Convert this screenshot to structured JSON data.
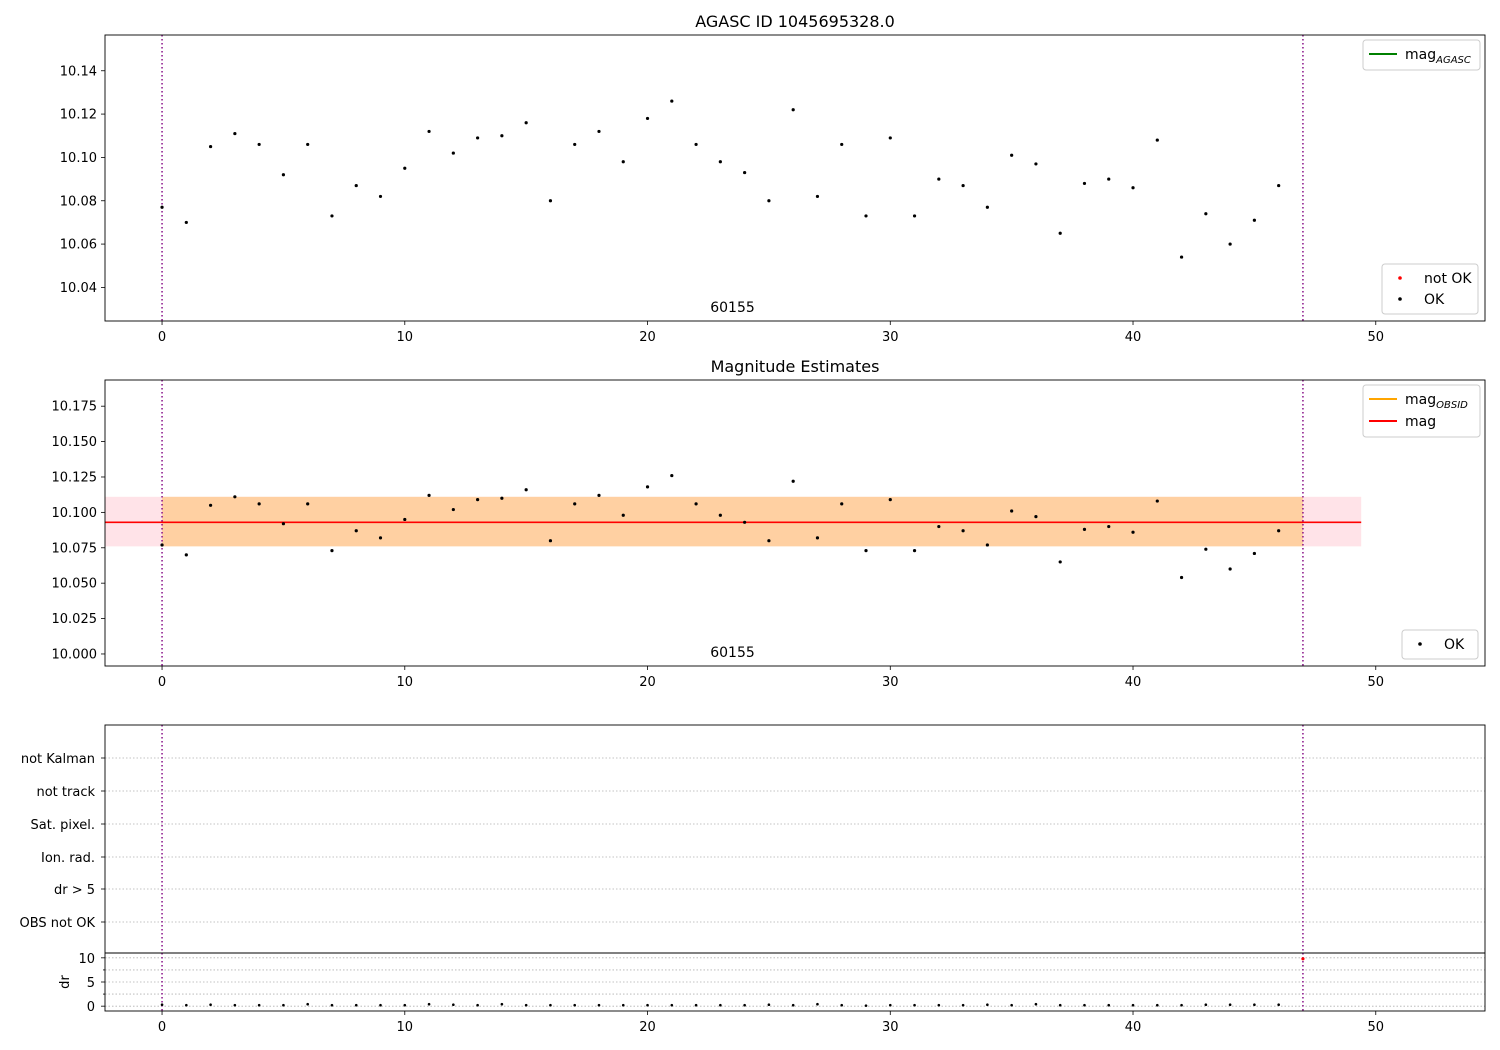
{
  "chart_data": [
    {
      "type": "scatter",
      "title": "AGASC ID 1045695328.0",
      "xlim": [
        -2.35,
        54.5
      ],
      "ylim": [
        10.0245,
        10.1565
      ],
      "xticks": [
        0,
        10,
        20,
        30,
        40,
        50
      ],
      "yticks": [
        10.04,
        10.06,
        10.08,
        10.1,
        10.12,
        10.14
      ],
      "ytick_labels": [
        "10.04",
        "10.06",
        "10.08",
        "10.10",
        "10.12",
        "10.14"
      ],
      "annotation": {
        "text": "60155",
        "x": 23.5
      },
      "vlines": [
        0,
        47
      ],
      "legend_upper": [
        {
          "label": "mag",
          "sub": "AGASC",
          "color": "#008000",
          "kind": "line"
        }
      ],
      "legend_lower": [
        {
          "label": "not OK",
          "color": "#ff0000",
          "kind": "point"
        },
        {
          "label": "OK",
          "color": "#000000",
          "kind": "point"
        }
      ],
      "series": [
        {
          "name": "OK",
          "color": "#000000",
          "x": [
            0,
            1,
            2,
            3,
            4,
            5,
            6,
            7,
            8,
            9,
            10,
            11,
            12,
            13,
            14,
            15,
            16,
            17,
            18,
            19,
            20,
            21,
            22,
            23,
            24,
            25,
            26,
            27,
            28,
            29,
            30,
            31,
            32,
            33,
            34,
            35,
            36,
            37,
            38,
            39,
            40,
            41,
            42,
            43,
            44,
            45,
            46
          ],
          "y": [
            10.077,
            10.07,
            10.105,
            10.111,
            10.106,
            10.092,
            10.106,
            10.073,
            10.087,
            10.082,
            10.095,
            10.112,
            10.102,
            10.109,
            10.11,
            10.116,
            10.08,
            10.106,
            10.112,
            10.098,
            10.118,
            10.126,
            10.106,
            10.098,
            10.093,
            10.08,
            10.122,
            10.082,
            10.106,
            10.073,
            10.109,
            10.073,
            10.09,
            10.087,
            10.077,
            10.101,
            10.097,
            10.065,
            10.088,
            10.09,
            10.086,
            10.108,
            10.054,
            10.074,
            10.06,
            10.071,
            10.087
          ]
        }
      ]
    },
    {
      "type": "scatter",
      "title": "Magnitude Estimates",
      "xlim": [
        -2.35,
        54.5
      ],
      "ylim": [
        9.9915,
        10.1935
      ],
      "xticks": [
        0,
        10,
        20,
        30,
        40,
        50
      ],
      "yticks": [
        10.0,
        10.025,
        10.05,
        10.075,
        10.1,
        10.125,
        10.15,
        10.175
      ],
      "ytick_labels": [
        "10.000",
        "10.025",
        "10.050",
        "10.075",
        "10.100",
        "10.125",
        "10.150",
        "10.175"
      ],
      "annotation": {
        "text": "60155",
        "x": 23.5
      },
      "vlines": [
        0,
        47
      ],
      "mag_line": {
        "y": 10.093,
        "x": [
          -2.35,
          49.4
        ],
        "color": "#ff0000"
      },
      "bands": [
        {
          "y": [
            10.076,
            10.111
          ],
          "x": [
            -2.35,
            49.4
          ],
          "color": "#ffc0cb"
        },
        {
          "y": [
            10.076,
            10.111
          ],
          "x": [
            0,
            47
          ],
          "color": "#ffa500"
        }
      ],
      "legend_upper": [
        {
          "label": "mag",
          "sub": "OBSID",
          "color": "#ffa500",
          "kind": "line"
        },
        {
          "label": "mag",
          "sub": "",
          "color": "#ff0000",
          "kind": "line"
        }
      ],
      "legend_lower": [
        {
          "label": "OK",
          "color": "#000000",
          "kind": "point"
        }
      ],
      "series": [
        {
          "name": "OK",
          "color": "#000000",
          "x": [
            0,
            1,
            2,
            3,
            4,
            5,
            6,
            7,
            8,
            9,
            10,
            11,
            12,
            13,
            14,
            15,
            16,
            17,
            18,
            19,
            20,
            21,
            22,
            23,
            24,
            25,
            26,
            27,
            28,
            29,
            30,
            31,
            32,
            33,
            34,
            35,
            36,
            37,
            38,
            39,
            40,
            41,
            42,
            43,
            44,
            45,
            46
          ],
          "y": [
            10.077,
            10.07,
            10.105,
            10.111,
            10.106,
            10.092,
            10.106,
            10.073,
            10.087,
            10.082,
            10.095,
            10.112,
            10.102,
            10.109,
            10.11,
            10.116,
            10.08,
            10.106,
            10.112,
            10.098,
            10.118,
            10.126,
            10.106,
            10.098,
            10.093,
            10.08,
            10.122,
            10.082,
            10.106,
            10.073,
            10.109,
            10.073,
            10.09,
            10.087,
            10.077,
            10.101,
            10.097,
            10.065,
            10.088,
            10.09,
            10.086,
            10.108,
            10.054,
            10.074,
            10.06,
            10.071,
            10.087
          ]
        }
      ]
    },
    {
      "type": "scatter",
      "title": "",
      "xlim": [
        -2.35,
        54.5
      ],
      "xticks": [
        0,
        10,
        20,
        30,
        40,
        50
      ],
      "vlines": [
        0,
        47
      ],
      "flag_categories": [
        "not Kalman",
        "not track",
        "Sat. pixel.",
        "Ion. rad.",
        "dr > 5",
        "OBS not OK"
      ],
      "dr_panel": {
        "ylabel": "dr",
        "ylim": [
          -1,
          11
        ],
        "yticks": [
          0,
          5,
          10
        ],
        "points": {
          "x": [
            0,
            1,
            2,
            3,
            4,
            5,
            6,
            7,
            8,
            9,
            10,
            11,
            12,
            13,
            14,
            15,
            16,
            17,
            18,
            19,
            20,
            21,
            22,
            23,
            24,
            25,
            26,
            27,
            28,
            29,
            30,
            31,
            32,
            33,
            34,
            35,
            36,
            37,
            38,
            39,
            40,
            41,
            42,
            43,
            44,
            45,
            46
          ],
          "y": [
            0.3,
            0.2,
            0.3,
            0.2,
            0.2,
            0.2,
            0.4,
            0.2,
            0.2,
            0.2,
            0.2,
            0.4,
            0.3,
            0.2,
            0.4,
            0.2,
            0.2,
            0.2,
            0.2,
            0.2,
            0.2,
            0.2,
            0.2,
            0.2,
            0.2,
            0.3,
            0.2,
            0.4,
            0.2,
            0.1,
            0.2,
            0.2,
            0.2,
            0.2,
            0.3,
            0.2,
            0.4,
            0.2,
            0.2,
            0.2,
            0.2,
            0.2,
            0.2,
            0.3,
            0.3,
            0.3,
            0.3
          ]
        },
        "red_points": {
          "x": [
            47
          ],
          "y": [
            9.8
          ]
        }
      }
    }
  ]
}
